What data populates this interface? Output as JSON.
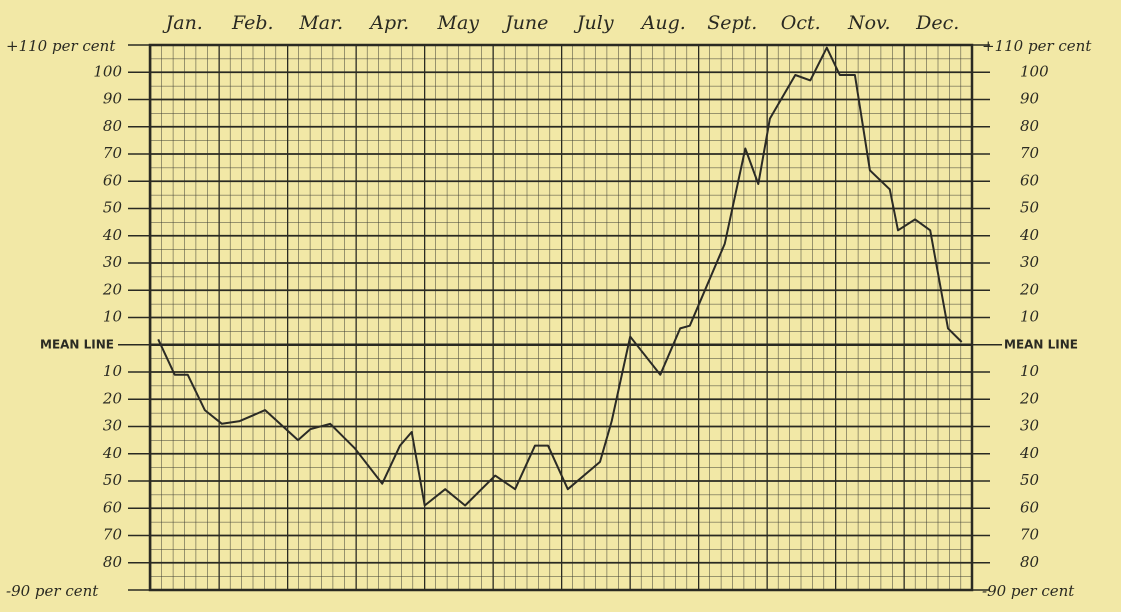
{
  "chart_data": {
    "type": "line",
    "months": [
      "Jan.",
      "Feb.",
      "Mar.",
      "Apr.",
      "May",
      "June",
      "July",
      "Aug.",
      "Sept.",
      "Oct.",
      "Nov.",
      "Dec."
    ],
    "xlim": [
      0,
      12
    ],
    "ylim": [
      -90,
      110
    ],
    "yticks": [
      {
        "value": 110,
        "label": "+110 per cent"
      },
      100,
      90,
      80,
      70,
      60,
      50,
      40,
      30,
      20,
      10,
      {
        "value": 0,
        "label": "MEAN LINE"
      },
      {
        "value": -10,
        "label": "10"
      },
      {
        "value": -20,
        "label": "20"
      },
      {
        "value": -30,
        "label": "30"
      },
      {
        "value": -40,
        "label": "40"
      },
      {
        "value": -50,
        "label": "50"
      },
      {
        "value": -60,
        "label": "60"
      },
      {
        "value": -70,
        "label": "70"
      },
      {
        "value": -80,
        "label": "80"
      },
      {
        "value": -90,
        "label": "-90 per cent"
      }
    ],
    "grid": true,
    "color": "#2b2b26",
    "x": [
      0.12,
      0.36,
      0.55,
      0.8,
      1.05,
      1.31,
      1.68,
      2.16,
      2.34,
      2.63,
      2.99,
      3.39,
      3.65,
      3.82,
      4.01,
      4.31,
      4.6,
      5.04,
      5.33,
      5.62,
      5.81,
      6.1,
      6.57,
      6.74,
      7.01,
      7.45,
      7.74,
      7.88,
      8.39,
      8.69,
      8.88,
      9.05,
      9.42,
      9.64,
      9.88,
      10.07,
      10.29,
      10.51,
      10.8,
      10.92,
      11.17,
      11.39,
      11.65,
      11.85
    ],
    "values": [
      2,
      -11,
      -11,
      -24,
      -29,
      -28,
      -24,
      -35,
      -31,
      -29,
      -38,
      -51,
      -37,
      -32,
      -59,
      -53,
      -59,
      -48,
      -53,
      -37,
      -37,
      -53,
      -43,
      -28,
      3,
      -11,
      6,
      7,
      37,
      72,
      59,
      83,
      99,
      97,
      109,
      99,
      99,
      64,
      57,
      42,
      46,
      42,
      6,
      1
    ]
  }
}
